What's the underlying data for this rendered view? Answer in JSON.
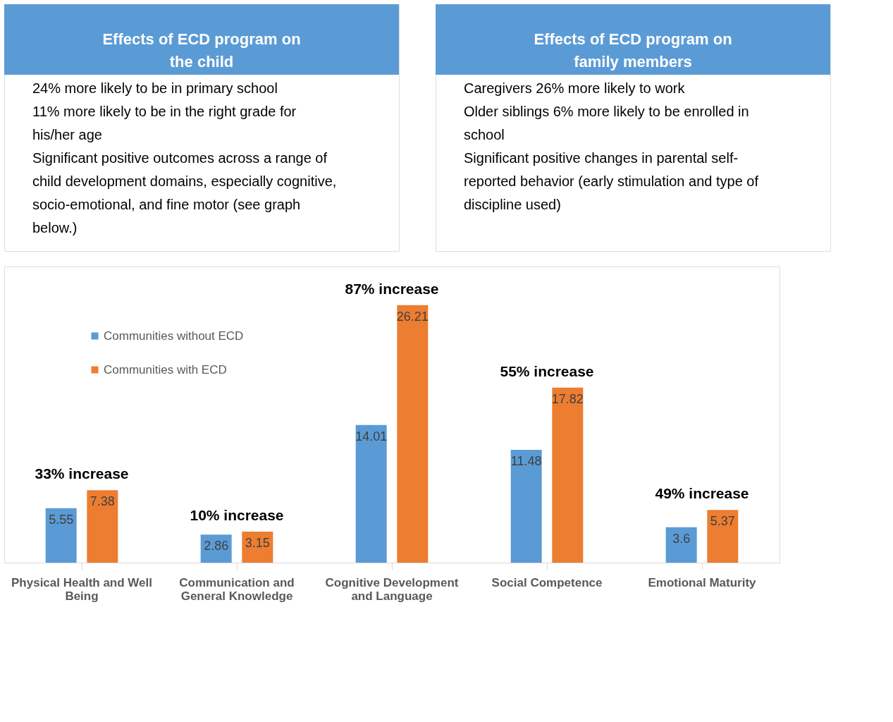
{
  "chart_data": [
    {
      "type": "other",
      "title": "Effects of ECD program on the child",
      "annotations": [
        "24% more likely to be in primary school",
        "11% more likely to be in the right grade for his/her age",
        "Significant positive outcomes across a range of child development domains, especially cognitive, socio-emotional, and fine motor (see graph below.)"
      ]
    },
    {
      "type": "other",
      "title": "Effects of ECD program on family members",
      "annotations": [
        "Caregivers 26% more likely to work",
        "Older siblings 6% more likely to be enrolled in school",
        "Significant positive changes in parental self-reported behavior (early stimulation and type of discipline used)"
      ]
    },
    {
      "type": "bar",
      "categories": [
        "Physical Health and Well Being",
        "Communication and General Knowledge",
        "Cognitive Development and Language",
        "Social Competence",
        "Emotional Maturity"
      ],
      "series": [
        {
          "name": "Communities without ECD",
          "color": "#5b9bd5",
          "values": [
            5.55,
            2.86,
            14.01,
            11.48,
            3.6
          ]
        },
        {
          "name": "Communities with ECD",
          "color": "#ed7d31",
          "values": [
            7.38,
            3.15,
            26.21,
            17.82,
            5.37
          ]
        }
      ],
      "data_labels": true,
      "legend": "top left",
      "grid": false,
      "annotations": [
        "33% increase",
        "10% increase",
        "87% increase",
        "55% increase",
        "49% increase"
      ]
    }
  ]
}
